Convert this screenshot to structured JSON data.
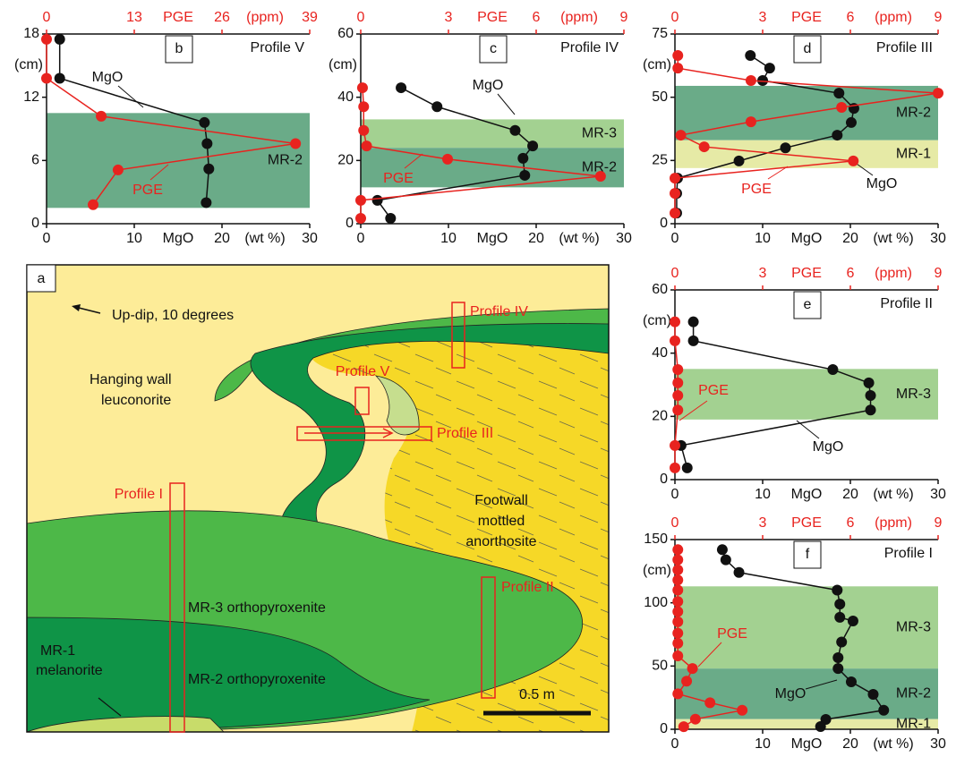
{
  "chart_data": [
    {
      "type": "profile",
      "panel": "b",
      "profile": "Profile V",
      "xlabel": "MgO",
      "xunit": "(wt %)",
      "x2label": "PGE",
      "x2unit": "(ppm)",
      "ylabel": "(cm)",
      "xlim": [
        0,
        30
      ],
      "xticks": [
        0,
        10,
        20,
        30
      ],
      "x2lim": [
        0,
        39
      ],
      "x2ticks": [
        0,
        13,
        26,
        39
      ],
      "ylim": [
        0,
        18
      ],
      "yticks": [
        0,
        6,
        12,
        18
      ],
      "bands": [
        {
          "label": "MR-2",
          "from": 1.5,
          "to": 10.5,
          "color": "#6aab88"
        }
      ],
      "series": [
        {
          "name": "MgO",
          "color": "#111111",
          "axis": "x",
          "values": [
            1.5,
            1.5,
            18,
            18.3,
            18.5,
            18.2
          ],
          "depth": [
            17.5,
            13.8,
            9.6,
            7.6,
            5.2,
            2
          ]
        },
        {
          "name": "PGE",
          "color": "#e8231f",
          "axis": "x2",
          "values": [
            0,
            0,
            8.1,
            36.9,
            10.6,
            6.9
          ],
          "depth": [
            17.5,
            13.8,
            10.2,
            7.6,
            5.1,
            1.8
          ]
        }
      ]
    },
    {
      "type": "profile",
      "panel": "c",
      "profile": "Profile IV",
      "xlabel": "MgO",
      "xunit": "(wt %)",
      "x2label": "PGE",
      "x2unit": "(ppm)",
      "ylabel": "(cm)",
      "xlim": [
        0,
        30
      ],
      "xticks": [
        0,
        10,
        20,
        30
      ],
      "x2lim": [
        0,
        9
      ],
      "x2ticks": [
        0,
        3,
        6,
        9
      ],
      "ylim": [
        0,
        60
      ],
      "yticks": [
        0,
        20,
        40,
        60
      ],
      "bands": [
        {
          "label": "MR-3",
          "from": 24,
          "to": 33,
          "color": "#a3d191"
        },
        {
          "label": "MR-2",
          "from": 11.5,
          "to": 24,
          "color": "#6aab88"
        }
      ],
      "series": [
        {
          "name": "MgO",
          "color": "#111111",
          "axis": "x",
          "values": [
            4.6,
            8.7,
            17.6,
            19.6,
            18.5,
            18.7,
            1.9,
            3.4
          ],
          "depth": [
            43,
            37,
            29.5,
            24.6,
            20.7,
            15.3,
            7.4,
            1.7
          ]
        },
        {
          "name": "PGE",
          "color": "#e8231f",
          "axis": "x2",
          "values": [
            0.06,
            0.1,
            0.1,
            0.2,
            2.97,
            8.2,
            0,
            0
          ],
          "depth": [
            43,
            37,
            29.5,
            24.6,
            20.4,
            15,
            7.4,
            1.7
          ]
        }
      ]
    },
    {
      "type": "profile",
      "panel": "d",
      "profile": "Profile III",
      "xlabel": "MgO",
      "xunit": "(wt %)",
      "x2label": "PGE",
      "x2unit": "(ppm)",
      "ylabel": "(cm)",
      "xlim": [
        0,
        30
      ],
      "xticks": [
        0,
        10,
        20,
        30
      ],
      "x2lim": [
        0,
        9
      ],
      "x2ticks": [
        0,
        3,
        6,
        9
      ],
      "ylim": [
        0,
        75
      ],
      "yticks": [
        0,
        25,
        50,
        75
      ],
      "bands": [
        {
          "label": "MR-2",
          "from": 33,
          "to": 54.5,
          "color": "#6aab88"
        },
        {
          "label": "MR-1",
          "from": 22,
          "to": 33,
          "color": "#e6eaa6"
        }
      ],
      "series": [
        {
          "name": "MgO",
          "color": "#111111",
          "axis": "x",
          "values": [
            8.6,
            10.8,
            10,
            18.7,
            20.4,
            20.1,
            18.5,
            12.6,
            7.3,
            0.3,
            0.2,
            0.2
          ],
          "depth": [
            66.5,
            61.5,
            56.6,
            51.6,
            45.6,
            40,
            35,
            30,
            24.8,
            18,
            12,
            4.2
          ]
        },
        {
          "name": "PGE",
          "color": "#e8231f",
          "axis": "x2",
          "values": [
            0.1,
            0.1,
            2.6,
            9,
            5.7,
            2.6,
            0.2,
            1,
            6.1,
            0,
            0,
            0
          ],
          "depth": [
            66.5,
            61.5,
            56.6,
            51.6,
            46,
            40.3,
            35,
            30.4,
            24.8,
            18,
            12,
            4.2
          ]
        }
      ]
    },
    {
      "type": "profile",
      "panel": "e",
      "profile": "Profile II",
      "xlabel": "MgO",
      "xunit": "(wt %)",
      "x2label": "PGE",
      "x2unit": "(ppm)",
      "ylabel": "(cm)",
      "xlim": [
        0,
        30
      ],
      "xticks": [
        0,
        10,
        20,
        30
      ],
      "x2lim": [
        0,
        9
      ],
      "x2ticks": [
        0,
        3,
        6,
        9
      ],
      "ylim": [
        0,
        60
      ],
      "yticks": [
        0,
        20,
        40,
        60
      ],
      "bands": [
        {
          "label": "MR-3",
          "from": 19,
          "to": 35,
          "color": "#a3d191"
        }
      ],
      "series": [
        {
          "name": "MgO",
          "color": "#111111",
          "axis": "x",
          "values": [
            2.1,
            2.1,
            18,
            22.1,
            22.3,
            22.3,
            0.7,
            1.4
          ],
          "depth": [
            49.9,
            43.9,
            34.8,
            30.6,
            26.6,
            22,
            10.8,
            3.7
          ]
        },
        {
          "name": "PGE",
          "color": "#e8231f",
          "axis": "x2",
          "values": [
            0,
            0,
            0.1,
            0.1,
            0.1,
            0.1,
            0,
            0
          ],
          "depth": [
            49.9,
            43.9,
            34.8,
            30.6,
            26.6,
            22,
            10.8,
            3.7
          ]
        }
      ]
    },
    {
      "type": "profile",
      "panel": "f",
      "profile": "Profile I",
      "xlabel": "MgO",
      "xunit": "(wt %)",
      "x2label": "PGE",
      "x2unit": "(ppm)",
      "ylabel": "(cm)",
      "xlim": [
        0,
        30
      ],
      "xticks": [
        0,
        10,
        20,
        30
      ],
      "x2lim": [
        0,
        9
      ],
      "x2ticks": [
        0,
        3,
        6,
        9
      ],
      "ylim": [
        0,
        150
      ],
      "yticks": [
        0,
        50,
        100,
        150
      ],
      "bands": [
        {
          "label": "MR-3",
          "from": 48,
          "to": 113,
          "color": "#a3d191"
        },
        {
          "label": "MR-2",
          "from": 8,
          "to": 48,
          "color": "#6aab88"
        },
        {
          "label": "MR-1",
          "from": 0,
          "to": 8,
          "color": "#e6eaa6"
        }
      ],
      "series": [
        {
          "name": "MgO",
          "color": "#111111",
          "axis": "x",
          "values": [
            5.4,
            5.8,
            7.3,
            18.5,
            18.8,
            18.8,
            20.3,
            19,
            18.6,
            18.6,
            20.1,
            22.6,
            23.8,
            17.2,
            16.6
          ],
          "depth": [
            142,
            134,
            124,
            110,
            99,
            88.5,
            85.6,
            69,
            56.6,
            48,
            37.5,
            27.6,
            15,
            7.8,
            2.1
          ]
        },
        {
          "name": "PGE",
          "color": "#e8231f",
          "axis": "x2",
          "values": [
            0.1,
            0.1,
            0.1,
            0.1,
            0.1,
            0.1,
            0.1,
            0.1,
            0.1,
            0.1,
            0.1,
            0.6,
            0.4,
            0.1,
            1.2,
            2.3,
            0.7,
            0.3
          ],
          "depth": [
            142,
            134,
            126,
            118,
            110,
            101,
            93,
            85,
            76,
            68,
            58,
            48,
            38,
            28,
            21,
            15,
            8,
            2
          ]
        }
      ]
    }
  ],
  "map": {
    "panel": "a",
    "updip": "Up-dip, 10 degrees",
    "hanging": [
      "Hanging wall",
      "leuconorite"
    ],
    "footwall": [
      "Footwall",
      "mottled",
      "anorthosite"
    ],
    "mr3": "MR-3 orthopyroxenite",
    "mr2": "MR-2 orthopyroxenite",
    "mr1": [
      "MR-1",
      "melanorite"
    ],
    "profiles": [
      "Profile IV",
      "Profile V",
      "Profile III",
      "Profile I",
      "Profile II"
    ],
    "scale": "0.5 m"
  }
}
